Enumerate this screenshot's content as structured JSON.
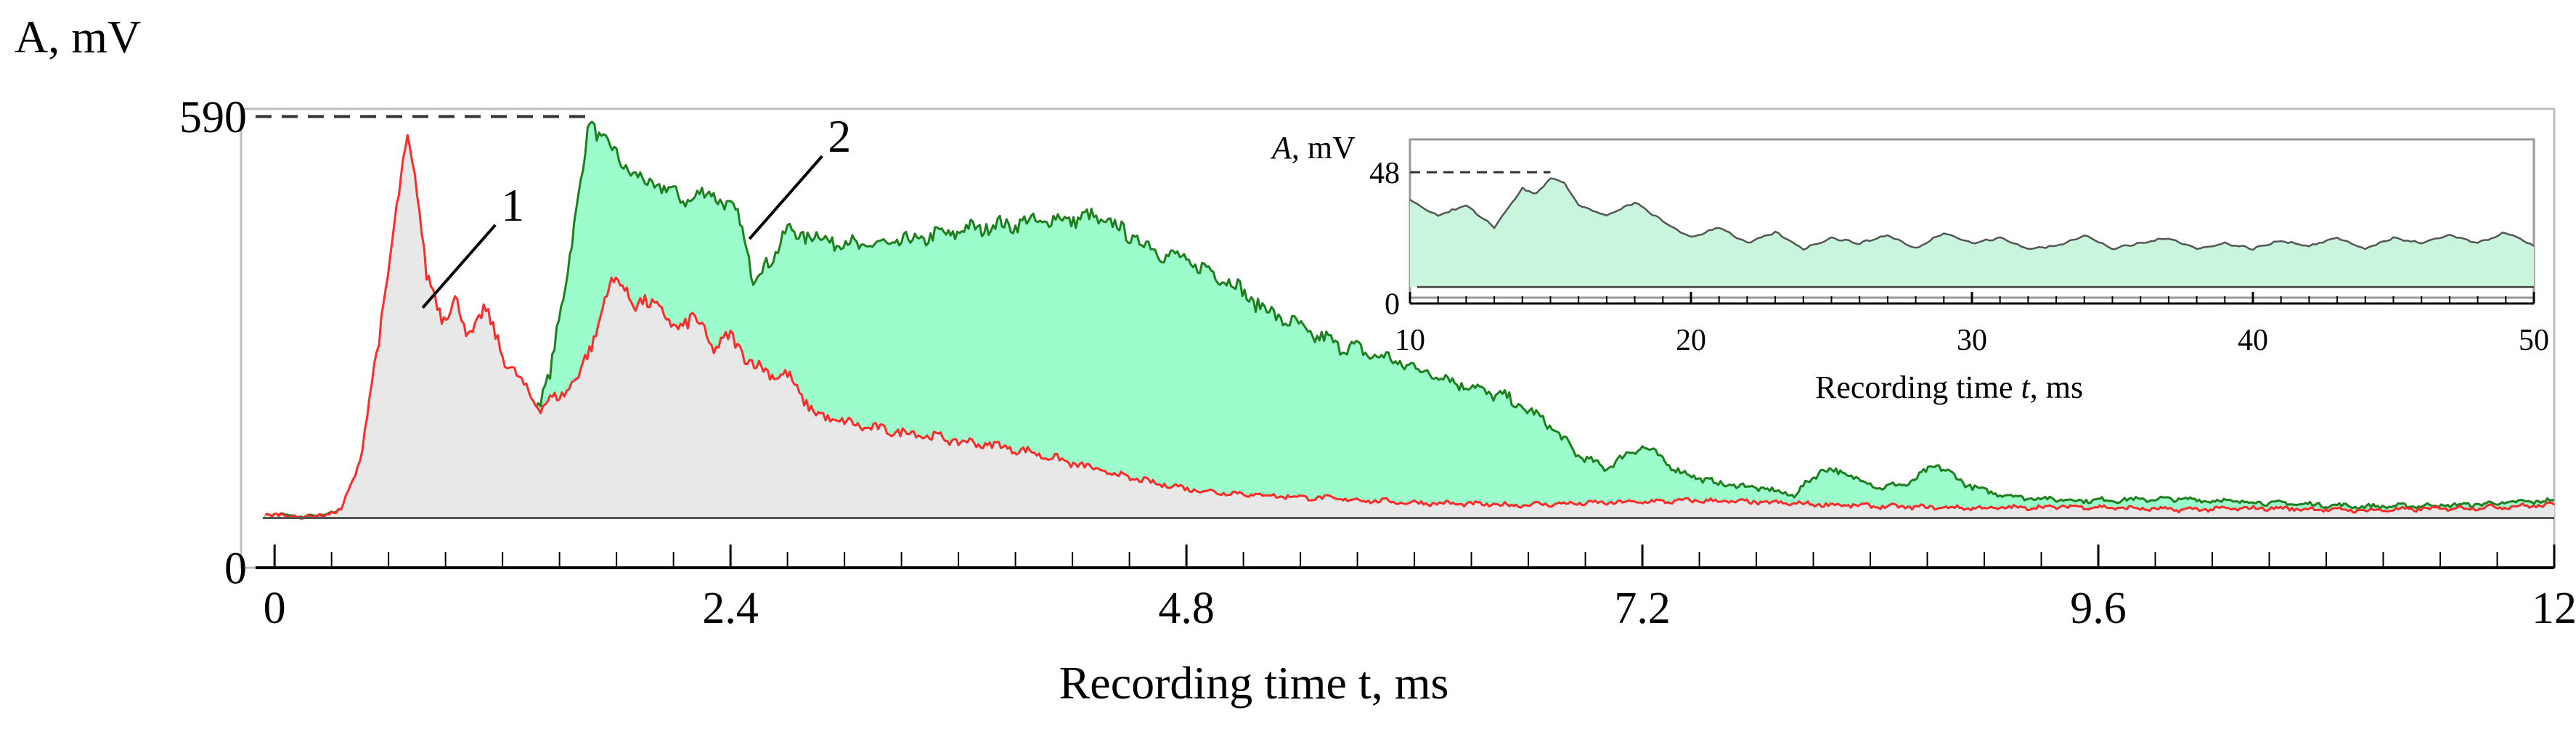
{
  "chart_data": [
    {
      "type": "area",
      "title": "",
      "ylabel": "A, mV",
      "xlabel": "Recording time t, ms",
      "xlim": [
        -0.1,
        12.0
      ],
      "ylim": [
        0,
        600
      ],
      "x_ticks": [
        "0",
        "2.4",
        "4.8",
        "7.2",
        "9.6",
        "12"
      ],
      "x_tick_values": [
        0,
        2.4,
        4.8,
        7.2,
        9.6,
        12
      ],
      "y_ticks": [
        "0",
        "590"
      ],
      "y_tick_values": [
        0,
        590
      ],
      "baseline": 65,
      "reference_line": {
        "value": 590,
        "x_end": 1.65,
        "style": "dashed"
      },
      "annotations": [
        {
          "text": "1",
          "series": "1",
          "at_x": 0.78,
          "at_y": 340
        },
        {
          "text": "2",
          "series": "2",
          "at_x": 2.5,
          "at_y": 430
        }
      ],
      "series": [
        {
          "name": "1",
          "color": "#ff2a2a",
          "fill": "#e8e8e8",
          "points": [
            [
              -0.05,
              70
            ],
            [
              0.2,
              66
            ],
            [
              0.35,
              75
            ],
            [
              0.45,
              140
            ],
            [
              0.55,
              300
            ],
            [
              0.62,
              430
            ],
            [
              0.7,
              560
            ],
            [
              0.75,
              500
            ],
            [
              0.8,
              380
            ],
            [
              0.88,
              330
            ],
            [
              0.95,
              350
            ],
            [
              1.02,
              300
            ],
            [
              1.1,
              340
            ],
            [
              1.2,
              280
            ],
            [
              1.3,
              240
            ],
            [
              1.4,
              210
            ],
            [
              1.5,
              225
            ],
            [
              1.6,
              250
            ],
            [
              1.68,
              300
            ],
            [
              1.75,
              360
            ],
            [
              1.82,
              380
            ],
            [
              1.9,
              340
            ],
            [
              2.0,
              350
            ],
            [
              2.1,
              310
            ],
            [
              2.2,
              330
            ],
            [
              2.3,
              290
            ],
            [
              2.4,
              300
            ],
            [
              2.55,
              260
            ],
            [
              2.7,
              250
            ],
            [
              2.85,
              200
            ],
            [
              3.0,
              190
            ],
            [
              3.2,
              180
            ],
            [
              3.4,
              175
            ],
            [
              3.6,
              165
            ],
            [
              3.8,
              160
            ],
            [
              4.0,
              150
            ],
            [
              4.3,
              130
            ],
            [
              4.6,
              112
            ],
            [
              4.9,
              100
            ],
            [
              5.2,
              95
            ],
            [
              5.6,
              90
            ],
            [
              6.0,
              85
            ],
            [
              6.5,
              82
            ],
            [
              7.0,
              85
            ],
            [
              7.5,
              88
            ],
            [
              8.0,
              84
            ],
            [
              8.5,
              80
            ],
            [
              9.0,
              78
            ],
            [
              9.5,
              80
            ],
            [
              10.0,
              76
            ],
            [
              10.5,
              78
            ],
            [
              11.0,
              75
            ],
            [
              11.5,
              78
            ],
            [
              12.0,
              82
            ]
          ]
        },
        {
          "name": "2",
          "color": "#1f7f1f",
          "fill": "#9cfccb",
          "points": [
            [
              -0.05,
              70
            ],
            [
              0.2,
              66
            ],
            [
              0.35,
              75
            ],
            [
              0.45,
              130
            ],
            [
              0.55,
              220
            ],
            [
              0.62,
              290
            ],
            [
              0.68,
              330
            ],
            [
              0.75,
              250
            ],
            [
              0.85,
              230
            ],
            [
              0.95,
              270
            ],
            [
              1.05,
              290
            ],
            [
              1.15,
              260
            ],
            [
              1.25,
              230
            ],
            [
              1.3,
              210
            ],
            [
              1.4,
              220
            ],
            [
              1.45,
              250
            ],
            [
              1.52,
              360
            ],
            [
              1.6,
              480
            ],
            [
              1.66,
              590
            ],
            [
              1.72,
              560
            ],
            [
              1.8,
              540
            ],
            [
              1.9,
              510
            ],
            [
              2.0,
              500
            ],
            [
              2.1,
              490
            ],
            [
              2.2,
              480
            ],
            [
              2.3,
              495
            ],
            [
              2.38,
              470
            ],
            [
              2.45,
              460
            ],
            [
              2.52,
              375
            ],
            [
              2.6,
              400
            ],
            [
              2.7,
              440
            ],
            [
              2.9,
              430
            ],
            [
              3.1,
              420
            ],
            [
              3.3,
              425
            ],
            [
              3.5,
              435
            ],
            [
              3.7,
              445
            ],
            [
              3.9,
              450
            ],
            [
              4.1,
              455
            ],
            [
              4.3,
              458
            ],
            [
              4.4,
              450
            ],
            [
              4.6,
              420
            ],
            [
              4.8,
              400
            ],
            [
              5.0,
              380
            ],
            [
              5.2,
              340
            ],
            [
              5.5,
              300
            ],
            [
              5.9,
              270
            ],
            [
              6.2,
              245
            ],
            [
              6.5,
              220
            ],
            [
              6.7,
              190
            ],
            [
              6.85,
              150
            ],
            [
              7.0,
              130
            ],
            [
              7.2,
              160
            ],
            [
              7.4,
              125
            ],
            [
              7.6,
              110
            ],
            [
              7.8,
              105
            ],
            [
              8.0,
              95
            ],
            [
              8.15,
              130
            ],
            [
              8.3,
              120
            ],
            [
              8.45,
              105
            ],
            [
              8.6,
              110
            ],
            [
              8.75,
              135
            ],
            [
              8.9,
              110
            ],
            [
              9.0,
              100
            ],
            [
              9.2,
              92
            ],
            [
              9.5,
              88
            ],
            [
              10.0,
              90
            ],
            [
              10.5,
              85
            ],
            [
              11.0,
              80
            ],
            [
              11.5,
              82
            ],
            [
              12.0,
              88
            ]
          ]
        }
      ]
    },
    {
      "type": "area",
      "title": "",
      "ylabel": "A, mV",
      "xlabel": "Recording time t, ms",
      "xlim": [
        10,
        50
      ],
      "ylim": [
        0,
        60
      ],
      "x_ticks": [
        "10",
        "20",
        "30",
        "40",
        "50"
      ],
      "x_tick_values": [
        10,
        20,
        30,
        40,
        50
      ],
      "y_ticks": [
        "0",
        "48"
      ],
      "y_tick_values": [
        0,
        48
      ],
      "baseline": 6,
      "reference_line": {
        "value": 48,
        "x_end": 15,
        "style": "dashed"
      },
      "series": [
        {
          "name": "2",
          "color": "#555555",
          "fill": "#c9f5dc",
          "points": [
            [
              10,
              38
            ],
            [
              11,
              32
            ],
            [
              12,
              36
            ],
            [
              13,
              28
            ],
            [
              14,
              42
            ],
            [
              14.5,
              40
            ],
            [
              15,
              46
            ],
            [
              15.5,
              44
            ],
            [
              16,
              36
            ],
            [
              17,
              32
            ],
            [
              18,
              37
            ],
            [
              19,
              30
            ],
            [
              20,
              24
            ],
            [
              21,
              28
            ],
            [
              22,
              22
            ],
            [
              23,
              26
            ],
            [
              24,
              20
            ],
            [
              25,
              24
            ],
            [
              26,
              22
            ],
            [
              27,
              25
            ],
            [
              28,
              20
            ],
            [
              29,
              26
            ],
            [
              30,
              22
            ],
            [
              31,
              24
            ],
            [
              32,
              20
            ],
            [
              33,
              21
            ],
            [
              34,
              25
            ],
            [
              35,
              20
            ],
            [
              36,
              22
            ],
            [
              37,
              24
            ],
            [
              38,
              20
            ],
            [
              39,
              22
            ],
            [
              40,
              20
            ],
            [
              41,
              23
            ],
            [
              42,
              21
            ],
            [
              43,
              24
            ],
            [
              44,
              20
            ],
            [
              45,
              24
            ],
            [
              46,
              22
            ],
            [
              47,
              25
            ],
            [
              48,
              22
            ],
            [
              49,
              26
            ],
            [
              50,
              21
            ]
          ]
        }
      ]
    }
  ]
}
